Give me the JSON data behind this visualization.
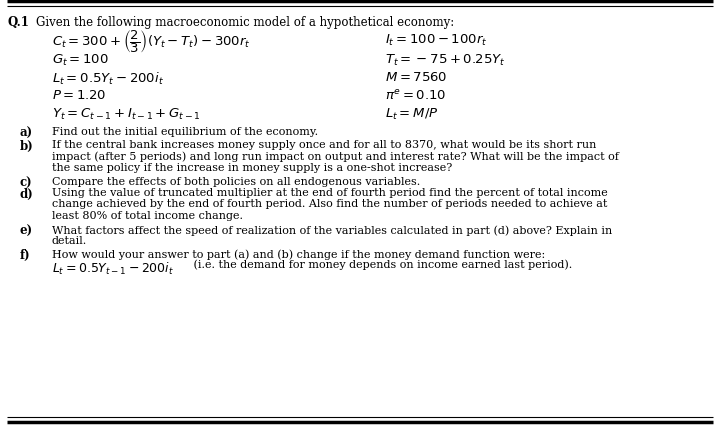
{
  "background_color": "#ffffff",
  "q_label": "Q.1",
  "title_text": "Given the following macroeconomic model of a hypothetical economy:",
  "eq_left": [
    "C_t = 300+\\left(\\dfrac{2}{3}\\right)(Y_t - T_t)-300r_t",
    "G_t = 100",
    "L_t = 0.5Y_t - 200i_t",
    "P = 1.20",
    "Y_t = C_{t-1}+I_{t-1}+G_{t-1}"
  ],
  "eq_right": [
    "I_t = 100-100r_t",
    "T_t = -75+0.25Y_t",
    "M = 7560",
    "\\pi^e = 0.10",
    "L_t = M/P"
  ],
  "parts": [
    {
      "label": "a)",
      "text": "Find out the initial equilibrium of the economy."
    },
    {
      "label": "b)",
      "text": "If the central bank increases money supply once and for all to 8370, what would be its short run\nimpact (after 5 periods) and long run impact on output and interest rate? What will be the impact of\nthe same policy if the increase in money supply is a one-shot increase?"
    },
    {
      "label": "c)",
      "text": "Compare the effects of both policies on all endogenous variables."
    },
    {
      "label": "d)",
      "text": "Using the value of truncated multiplier at the end of fourth period find the percent of total income\nchange achieved by the end of fourth period. Also find the number of periods needed to achieve at\nleast 80% of total income change."
    },
    {
      "label": "e)",
      "text": "What factors affect the speed of realization of the variables calculated in part (d) above? Explain in\ndetail."
    },
    {
      "label": "f)",
      "text": "How would your answer to part (a) and (b) change if the money demand function were:"
    }
  ],
  "f_math": "L_t = 0.5Y_{t-1}-200i_t",
  "f_tail": " (i.e. the demand for money depends on income earned last period).",
  "border_thick": 2.5,
  "border_thin": 1.0
}
